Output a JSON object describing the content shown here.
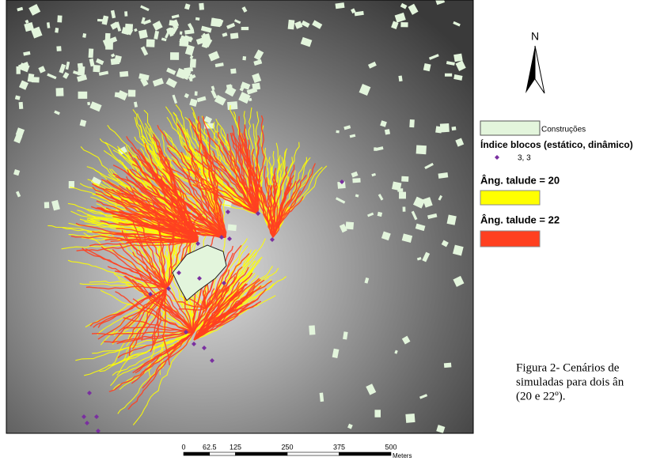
{
  "north": "N",
  "legend": {
    "buildings": "Construções",
    "block_index_title": "Índice blocos (estático, dinâmico)",
    "block_index_item": "3, 3",
    "slope20": "Âng. talude = 20",
    "slope22": "Âng. talude = 22"
  },
  "scale_bar": {
    "ticks": [
      0,
      62.5,
      125,
      250,
      375,
      500
    ],
    "unit": "Meters"
  },
  "caption": {
    "lines": [
      "Figura 2- Cenários de",
      "simuladas para dois ân",
      "(20 e 22º)."
    ]
  }
}
